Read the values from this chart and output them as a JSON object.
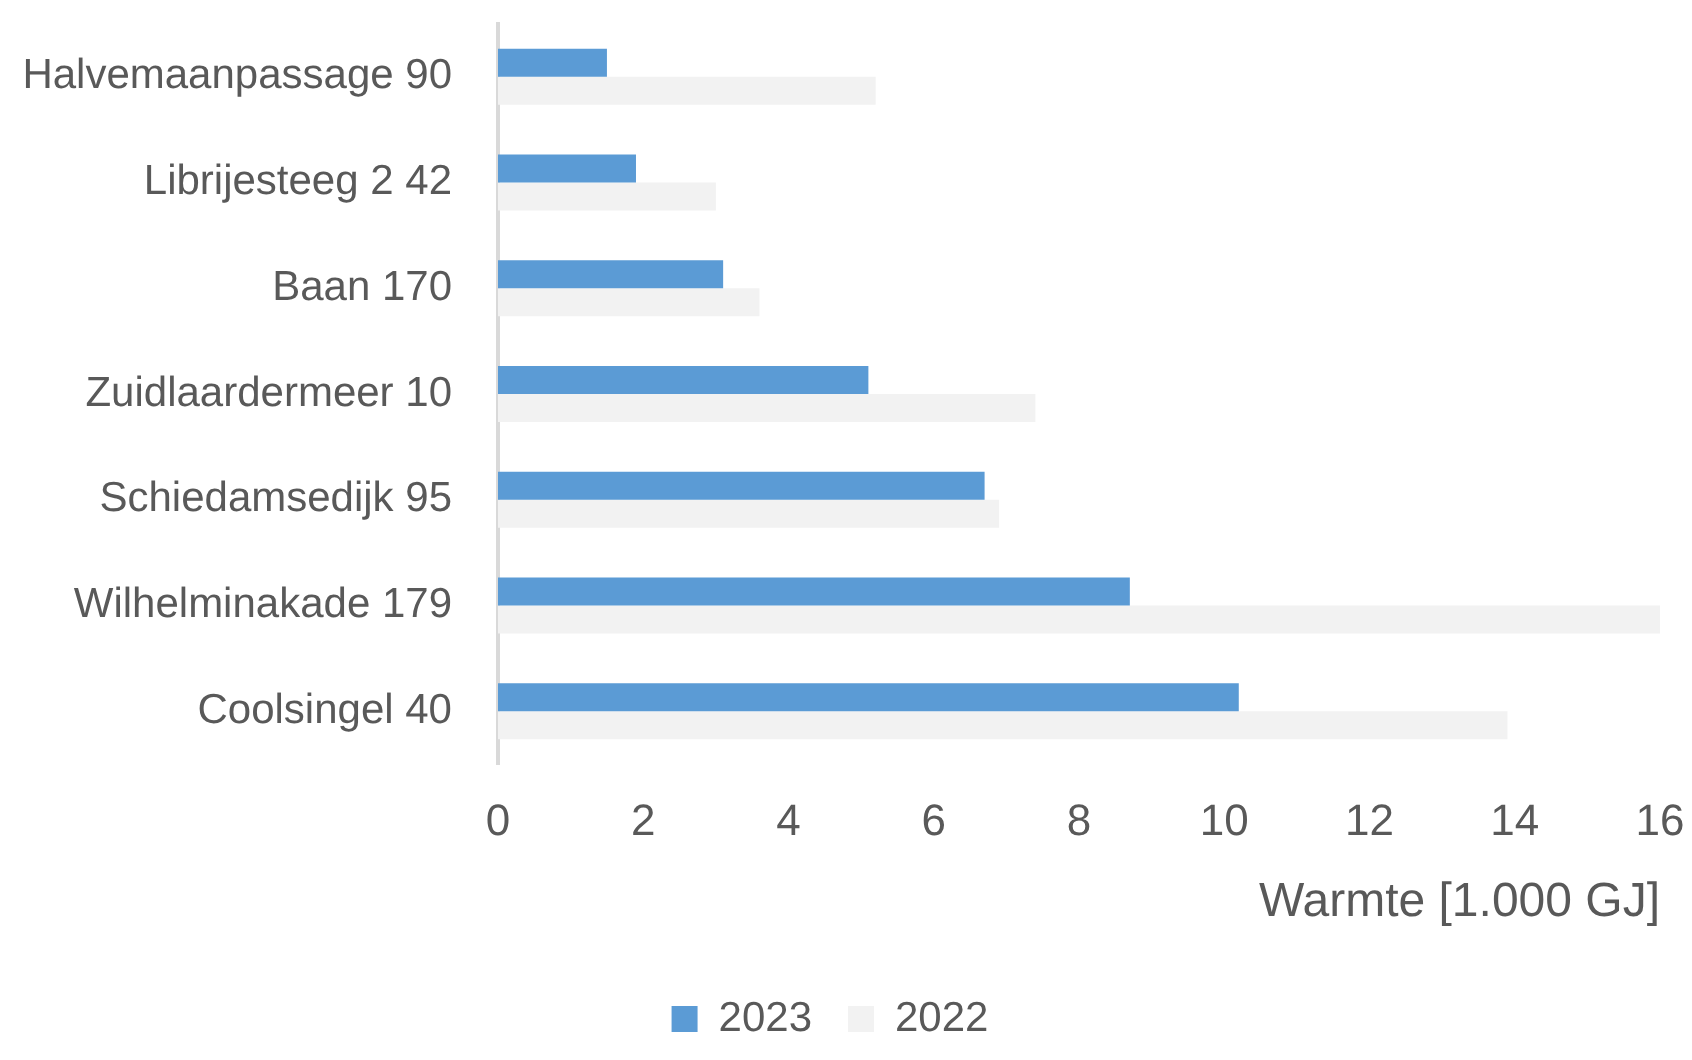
{
  "chart_data": {
    "type": "bar",
    "orientation": "horizontal",
    "xlabel": "Warmte [1.000 GJ]",
    "categories": [
      "Halvemaanpassage 90",
      "Librijesteeg 2 42",
      "Baan 170",
      "Zuidlaardermeer 10",
      "Schiedamsedijk 95",
      "Wilhelminakade 179",
      "Coolsingel 40"
    ],
    "series": [
      {
        "name": "2023",
        "color": "#5b9bd5",
        "values": [
          1.5,
          1.9,
          3.1,
          5.1,
          6.7,
          8.7,
          10.2
        ]
      },
      {
        "name": "2022",
        "color": "#f2f2f2",
        "values": [
          5.2,
          3.0,
          3.6,
          7.4,
          6.9,
          16.0,
          13.9
        ]
      }
    ],
    "xlim": [
      0,
      16
    ],
    "xticks": [
      0,
      2,
      4,
      6,
      8,
      10,
      12,
      14,
      16
    ],
    "grid": false,
    "legend": "bottom"
  }
}
